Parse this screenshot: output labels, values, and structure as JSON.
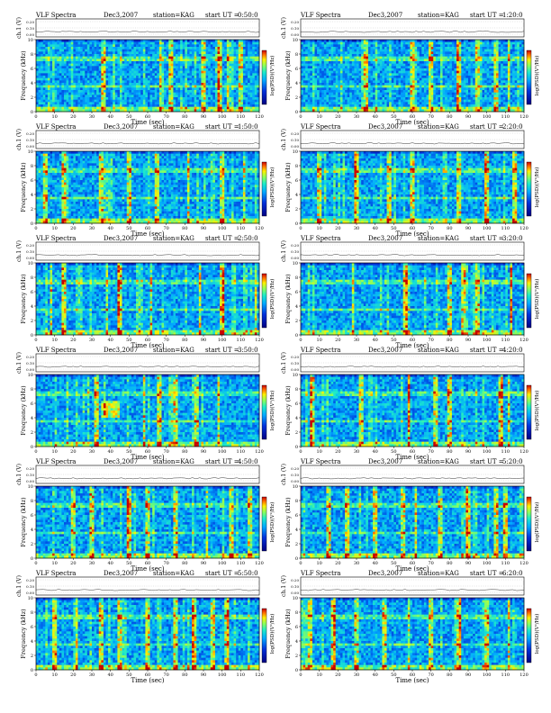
{
  "panel_labels": {
    "title": "VLF Spectra",
    "date": "Dec3,2007",
    "station": "station=KAG",
    "start_prefix": "start UT ="
  },
  "common_axes": {
    "xlabel": "Time (sec)",
    "ylabel": "Frequency (kHz)",
    "ch_label": "ch.1 (V)",
    "ch_ticks": [
      "0.00",
      "0.10",
      "0.20"
    ],
    "colorbar_label": "log(PSD)(V²/Hz)",
    "x_ticks": [
      "0",
      "10",
      "20",
      "30",
      "40",
      "50",
      "60",
      "70",
      "80",
      "90",
      "100",
      "110",
      "120"
    ],
    "y_ticks": [
      "0",
      "2",
      "4",
      "6",
      "8",
      "10"
    ]
  },
  "chart_data": [
    {
      "type": "heatmap",
      "start_ut": "0:50:0",
      "title": "VLF Spectra",
      "xlabel": "Time (sec)",
      "ylabel": "Frequency (kHz)",
      "xlim": [
        0,
        120
      ],
      "ylim": [
        0,
        10
      ],
      "strong_bursts_sec": [
        36,
        67,
        72,
        90,
        99,
        103,
        110
      ]
    },
    {
      "type": "heatmap",
      "start_ut": "1:20:0",
      "title": "VLF Spectra",
      "xlabel": "Time (sec)",
      "ylabel": "Frequency (kHz)",
      "xlim": [
        0,
        120
      ],
      "ylim": [
        0,
        10
      ],
      "strong_bursts_sec": [
        35,
        60,
        70,
        85,
        95,
        105,
        112
      ]
    },
    {
      "type": "heatmap",
      "start_ut": "1:50:0",
      "title": "VLF Spectra",
      "xlabel": "Time (sec)",
      "ylabel": "Frequency (kHz)",
      "xlim": [
        0,
        120
      ],
      "ylim": [
        0,
        10
      ],
      "strong_bursts_sec": [
        5,
        15,
        35,
        50,
        65,
        82,
        100,
        112
      ]
    },
    {
      "type": "heatmap",
      "start_ut": "2:20:0",
      "title": "VLF Spectra",
      "xlabel": "Time (sec)",
      "ylabel": "Frequency (kHz)",
      "xlim": [
        0,
        120
      ],
      "ylim": [
        0,
        10
      ],
      "strong_bursts_sec": [
        10,
        30,
        48,
        60,
        85,
        100,
        115
      ]
    },
    {
      "type": "heatmap",
      "start_ut": "2:50:0",
      "title": "VLF Spectra",
      "xlabel": "Time (sec)",
      "ylabel": "Frequency (kHz)",
      "xlim": [
        0,
        120
      ],
      "ylim": [
        0,
        10
      ],
      "strong_bursts_sec": [
        8,
        15,
        38,
        45,
        62,
        88,
        100,
        118
      ]
    },
    {
      "type": "heatmap",
      "start_ut": "3:20:0",
      "title": "VLF Spectra",
      "xlabel": "Time (sec)",
      "ylabel": "Frequency (kHz)",
      "xlim": [
        0,
        120
      ],
      "ylim": [
        0,
        10
      ],
      "strong_bursts_sec": [
        28,
        56,
        80,
        87,
        95,
        113
      ]
    },
    {
      "type": "heatmap",
      "start_ut": "3:50:0",
      "title": "VLF Spectra",
      "xlabel": "Time (sec)",
      "ylabel": "Frequency (kHz)",
      "xlim": [
        0,
        120
      ],
      "ylim": [
        0,
        10
      ],
      "strong_bursts_sec": [
        33,
        58,
        66,
        75,
        86,
        98
      ],
      "noise_patch_sec": [
        35,
        45
      ]
    },
    {
      "type": "heatmap",
      "start_ut": "4:20:0",
      "title": "VLF Spectra",
      "xlabel": "Time (sec)",
      "ylabel": "Frequency (kHz)",
      "xlim": [
        0,
        120
      ],
      "ylim": [
        0,
        10
      ],
      "strong_bursts_sec": [
        6,
        33,
        58,
        72,
        80,
        108,
        112
      ]
    },
    {
      "type": "heatmap",
      "start_ut": "4:50:0",
      "title": "VLF Spectra",
      "xlabel": "Time (sec)",
      "ylabel": "Frequency (kHz)",
      "xlim": [
        0,
        120
      ],
      "ylim": [
        0,
        10
      ],
      "strong_bursts_sec": [
        20,
        30,
        50,
        60,
        75,
        92,
        105,
        115
      ]
    },
    {
      "type": "heatmap",
      "start_ut": "5:20:0",
      "title": "VLF Spectra",
      "xlabel": "Time (sec)",
      "ylabel": "Frequency (kHz)",
      "xlim": [
        0,
        120
      ],
      "ylim": [
        0,
        10
      ],
      "strong_bursts_sec": [
        15,
        25,
        40,
        55,
        62,
        75,
        90,
        105,
        110
      ]
    },
    {
      "type": "heatmap",
      "start_ut": "5:50:0",
      "title": "VLF Spectra",
      "xlabel": "Time (sec)",
      "ylabel": "Frequency (kHz)",
      "xlim": [
        0,
        120
      ],
      "ylim": [
        0,
        10
      ],
      "strong_bursts_sec": [
        10,
        22,
        35,
        45,
        60,
        75,
        85,
        95,
        102
      ]
    },
    {
      "type": "heatmap",
      "start_ut": "6:20:0",
      "title": "VLF Spectra",
      "xlabel": "Time (sec)",
      "ylabel": "Frequency (kHz)",
      "xlim": [
        0,
        120
      ],
      "ylim": [
        0,
        10
      ],
      "strong_bursts_sec": [
        5,
        18,
        30,
        45,
        58,
        70,
        85,
        100,
        112
      ]
    }
  ]
}
